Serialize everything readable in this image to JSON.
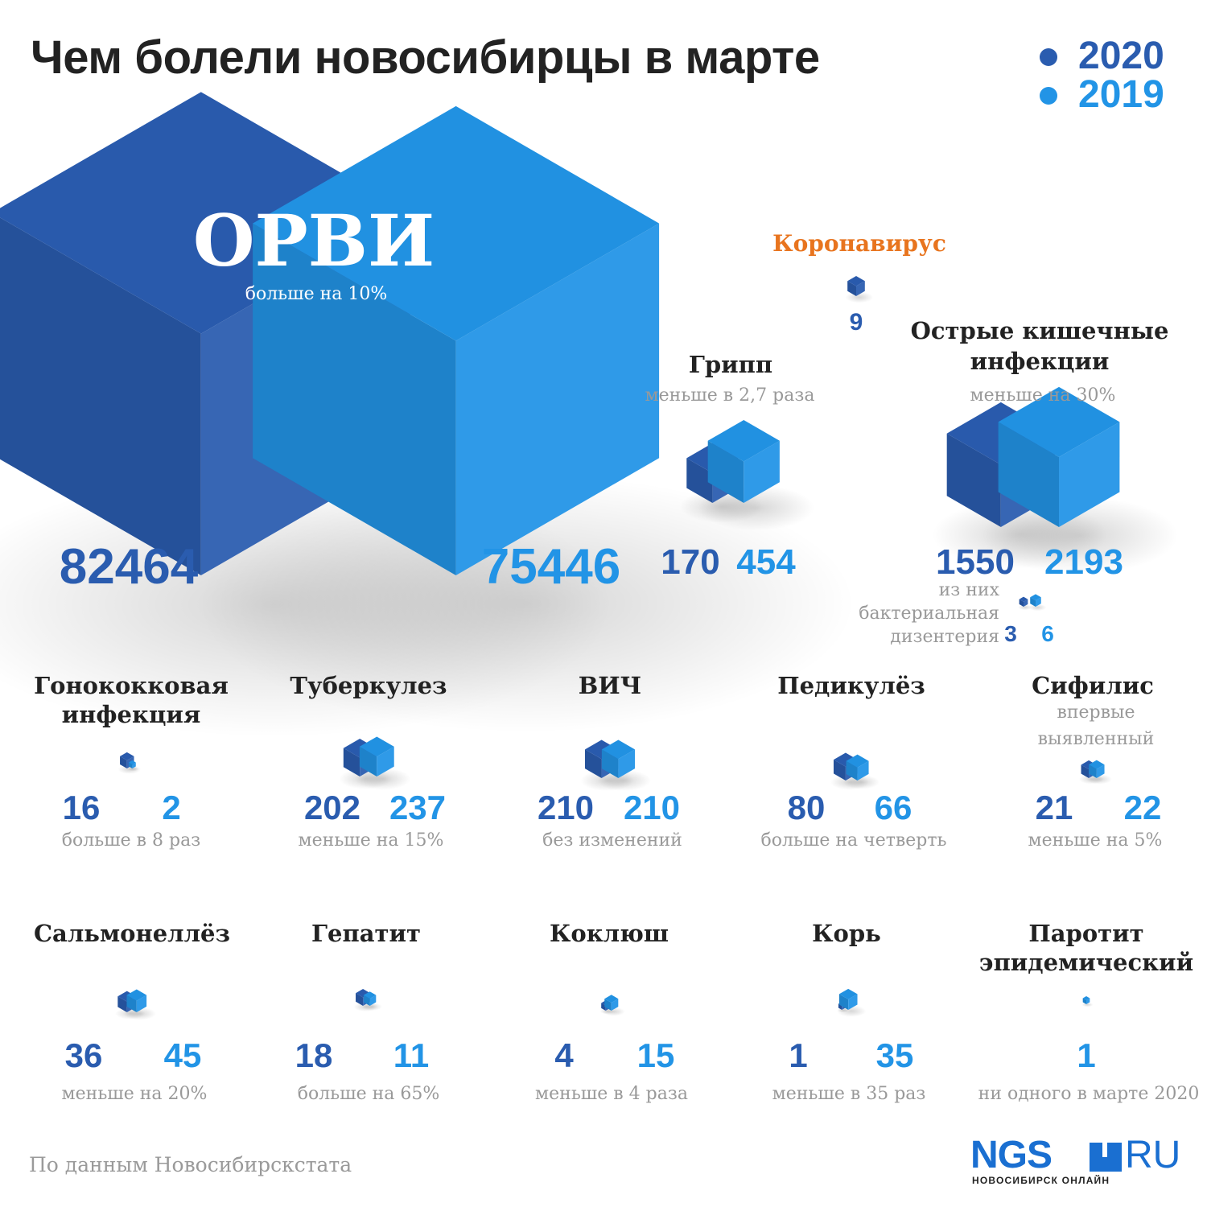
{
  "title": "Чем болели новосибирцы в марте",
  "legend": [
    {
      "label": "2020",
      "color": "#2a5caf"
    },
    {
      "label": "2019",
      "color": "#2294e6"
    }
  ],
  "colors": {
    "c2020": "#2a5caf",
    "c2019": "#2294e6",
    "note": "#999999",
    "label": "#222222",
    "corona": "#e8741e"
  },
  "source": "По данным Новосибирскстата",
  "logo": {
    "brand": "NGS",
    "domain": "RU",
    "subtitle": "НОВОСИБИРСК ОНЛАЙН"
  },
  "chart_data": {
    "type": "isometric-cubes",
    "series": [
      {
        "name": "2020"
      },
      {
        "name": "2019"
      }
    ],
    "items": [
      {
        "name": "ОРВИ",
        "note": "больше на 10%",
        "v2020": 82464,
        "v2019": 75446
      },
      {
        "name": "Коронавирус",
        "v2020": 9
      },
      {
        "name": "Грипп",
        "note": "меньше в 2,7 раза",
        "v2020": 170,
        "v2019": 454
      },
      {
        "name": "Острые кишечные инфекции",
        "note": "меньше на 30%",
        "v2020": 1550,
        "v2019": 2193,
        "sub": {
          "name": "из них бактериальная дизентерия",
          "v2020": 3,
          "v2019": 6
        }
      },
      {
        "name": "Гонококковая инфекция",
        "note": "больше в 8 раз",
        "v2020": 16,
        "v2019": 2
      },
      {
        "name": "Туберкулез",
        "note": "меньше на 15%",
        "v2020": 202,
        "v2019": 237
      },
      {
        "name": "ВИЧ",
        "note": "без изменений",
        "v2020": 210,
        "v2019": 210
      },
      {
        "name": "Педикулёз",
        "note": "больше на четверть",
        "v2020": 80,
        "v2019": 66
      },
      {
        "name": "Сифилис",
        "subname": "впервые выявленный",
        "note": "меньше на 5%",
        "v2020": 21,
        "v2019": 22
      },
      {
        "name": "Сальмонеллёз",
        "note": "меньше на 20%",
        "v2020": 36,
        "v2019": 45
      },
      {
        "name": "Гепатит",
        "note": "больше на 65%",
        "v2020": 18,
        "v2019": 11
      },
      {
        "name": "Коклюш",
        "note": "меньше в 4 раза",
        "v2020": 4,
        "v2019": 15
      },
      {
        "name": "Корь",
        "note": "меньше в 35 раз",
        "v2020": 1,
        "v2019": 35
      },
      {
        "name": "Паротит эпидемический",
        "note": "ни одного в марте 2020",
        "v2019": 1
      }
    ]
  }
}
